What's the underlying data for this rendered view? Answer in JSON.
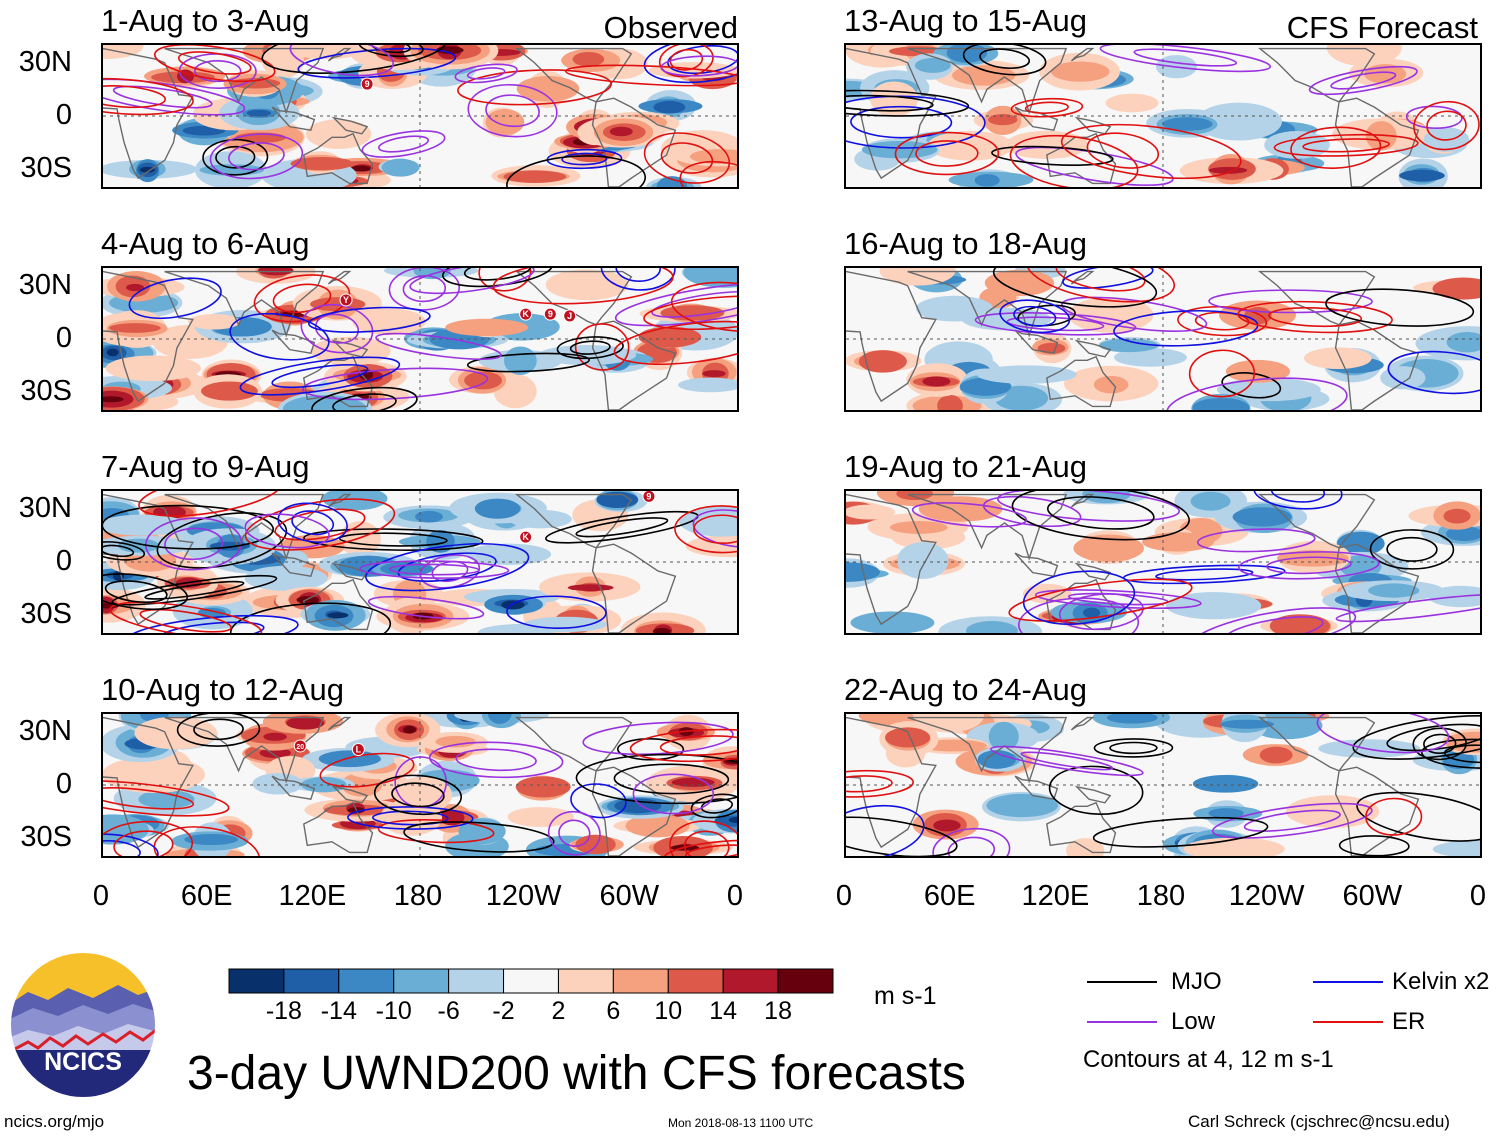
{
  "header": {
    "observed_label": "Observed",
    "forecast_label": "CFS Forecast"
  },
  "panels": [
    {
      "title": "1-Aug to 3-Aug"
    },
    {
      "title": "4-Aug to 6-Aug"
    },
    {
      "title": "7-Aug to 9-Aug"
    },
    {
      "title": "10-Aug to 12-Aug"
    },
    {
      "title": "13-Aug to 15-Aug"
    },
    {
      "title": "16-Aug to 18-Aug"
    },
    {
      "title": "19-Aug to 21-Aug"
    },
    {
      "title": "22-Aug to 24-Aug"
    }
  ],
  "chart_data": {
    "type": "heatmap",
    "title": "3-day UWND200 with CFS forecasts",
    "variable": "200-hPa zonal wind anomaly",
    "units": "m s-1",
    "lat_ticks": [
      "30N",
      "0",
      "30S"
    ],
    "lon_ticks": [
      "0",
      "60E",
      "120E",
      "180",
      "120W",
      "60W",
      "0"
    ],
    "lat_range": [
      -40,
      40
    ],
    "lon_range": [
      0,
      360
    ],
    "colorbar": {
      "levels": [
        "-18",
        "-14",
        "-10",
        "-6",
        "-2",
        "2",
        "6",
        "10",
        "14",
        "18"
      ],
      "colors": [
        "#08306b",
        "#1f5fa8",
        "#3b88c4",
        "#6aaed6",
        "#b4d3e9",
        "#f7f7f7",
        "#fcd2bd",
        "#f5a07f",
        "#dd5a4a",
        "#b2182b",
        "#67000d"
      ]
    },
    "contours": {
      "legend": [
        {
          "name": "MJO",
          "color": "#000000"
        },
        {
          "name": "Kelvin x2",
          "color": "#1010e0"
        },
        {
          "name": "Low",
          "color": "#9a32e0"
        },
        {
          "name": "ER",
          "color": "#e01010"
        }
      ],
      "note": "Contours at 4, 12 m s-1"
    },
    "tc_markers": [
      {
        "panel": "1-Aug to 3-Aug",
        "symbol": "9",
        "lon": 150,
        "lat": 18
      },
      {
        "panel": "4-Aug to 6-Aug",
        "symbol": "Y",
        "lon": 138,
        "lat": 22
      },
      {
        "panel": "4-Aug to 6-Aug",
        "symbol": "K",
        "lon": 240,
        "lat": 14
      },
      {
        "panel": "4-Aug to 6-Aug",
        "symbol": "9",
        "lon": 254,
        "lat": 14
      },
      {
        "panel": "4-Aug to 6-Aug",
        "symbol": "J",
        "lon": 265,
        "lat": 13
      },
      {
        "panel": "7-Aug to 9-Aug",
        "symbol": "9",
        "lon": 310,
        "lat": 37
      },
      {
        "panel": "7-Aug to 9-Aug",
        "symbol": "K",
        "lon": 240,
        "lat": 14
      },
      {
        "panel": "10-Aug to 12-Aug",
        "symbol": "20",
        "lon": 112,
        "lat": 22
      },
      {
        "panel": "10-Aug to 12-Aug",
        "symbol": "L",
        "lon": 145,
        "lat": 20
      }
    ]
  },
  "footer": {
    "left": "ncics.org/mjo",
    "center": "Mon 2018-08-13 1100 UTC",
    "right": "Carl Schreck (cjschrec@ncsu.edu)"
  },
  "logo": {
    "text": "NCICS"
  }
}
